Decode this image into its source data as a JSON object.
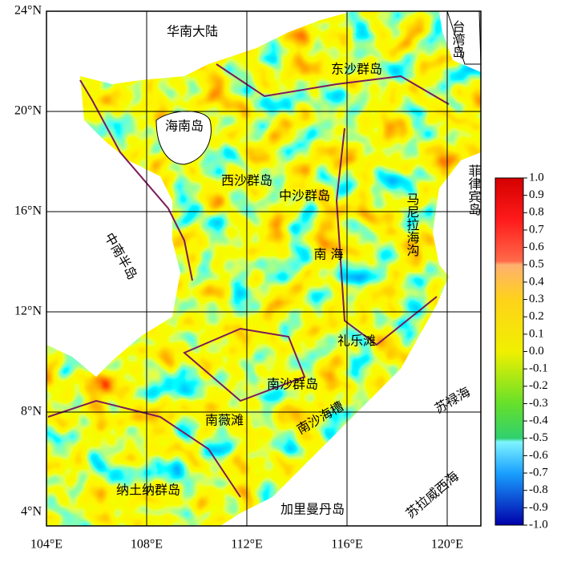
{
  "map": {
    "lat_labels": [
      "24°N",
      "20°N",
      "16°N",
      "12°N",
      "8°N",
      "4°N"
    ],
    "lon_labels": [
      "104°E",
      "108°E",
      "112°E",
      "116°E",
      "120°E"
    ],
    "places": [
      "华南大陆",
      "台湾岛",
      "东沙群岛",
      "海南岛",
      "菲律宾岛",
      "西沙群岛",
      "中沙群岛",
      "马尼拉海沟",
      "中南半岛",
      "南 海",
      "礼乐滩",
      "南沙群岛",
      "苏禄海",
      "南薇滩",
      "南沙海槽",
      "纳土纳群岛",
      "加里曼丹岛",
      "苏拉威西海"
    ]
  },
  "colorbar": {
    "ticks": [
      {
        "value": 1,
        "label": "1.0"
      },
      {
        "value": 0.9,
        "label": "0.9"
      },
      {
        "value": 0.8,
        "label": "0.8"
      },
      {
        "value": 0.7,
        "label": "0.7"
      },
      {
        "value": 0.6,
        "label": "0.6"
      },
      {
        "value": 0.5,
        "label": "0.5"
      },
      {
        "value": 0.4,
        "label": "0.4"
      },
      {
        "value": 0.3,
        "label": "0.3"
      },
      {
        "value": 0.2,
        "label": "0.2"
      },
      {
        "value": 0.1,
        "label": "0.1"
      },
      {
        "value": 0,
        "label": "0.0"
      },
      {
        "value": -0.1,
        "label": "-0.1"
      },
      {
        "value": -0.2,
        "label": "-0.2"
      },
      {
        "value": -0.3,
        "label": "-0.3"
      },
      {
        "value": -0.4,
        "label": "-0.4"
      },
      {
        "value": -0.5,
        "label": "-0.5"
      },
      {
        "value": -0.6,
        "label": "-0.6"
      },
      {
        "value": -0.7,
        "label": "-0.7"
      },
      {
        "value": -0.8,
        "label": "-0.8"
      },
      {
        "value": -0.9,
        "label": "-0.9"
      },
      {
        "value": -1,
        "label": "-1.0"
      }
    ],
    "range": [
      -1,
      1
    ]
  }
}
